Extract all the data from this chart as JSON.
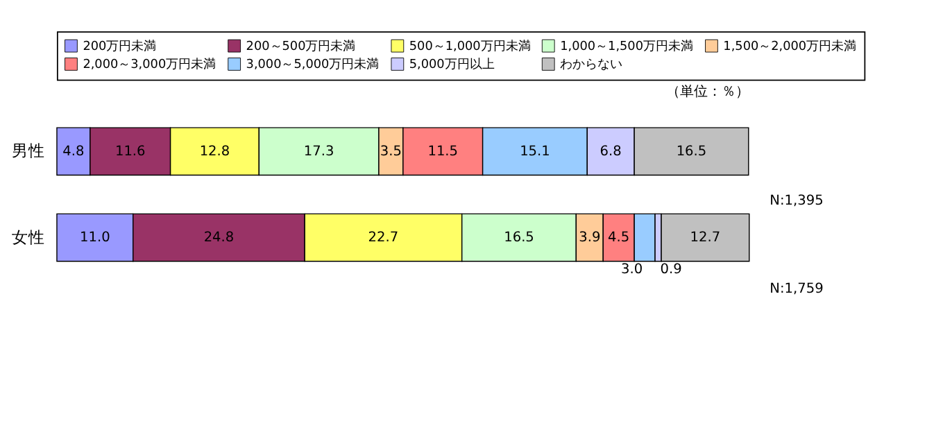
{
  "chart_data": {
    "type": "bar",
    "orientation": "horizontal",
    "stacked": true,
    "categories": [
      "男性",
      "女性"
    ],
    "series": [
      {
        "name": "200万円未満",
        "color": "#9999ff",
        "values": [
          4.8,
          11.0
        ],
        "value_labels": [
          "4.8",
          "11.0"
        ]
      },
      {
        "name": "200～500万円未満",
        "color": "#993366",
        "values": [
          11.6,
          24.8
        ],
        "value_labels": [
          "11.6",
          "24.8"
        ]
      },
      {
        "name": "500～1,000万円未満",
        "color": "#ffff66",
        "values": [
          12.8,
          22.7
        ],
        "value_labels": [
          "12.8",
          "22.7"
        ]
      },
      {
        "name": "1,000～1,500万円未満",
        "color": "#ccffcc",
        "values": [
          17.3,
          16.5
        ],
        "value_labels": [
          "17.3",
          "16.5"
        ]
      },
      {
        "name": "1,500～2,000万円未満",
        "color": "#ffcc99",
        "values": [
          3.5,
          3.9
        ],
        "value_labels": [
          "3.5",
          "3.9"
        ]
      },
      {
        "name": "2,000～3,000万円未満",
        "color": "#ff8080",
        "values": [
          11.5,
          4.5
        ],
        "value_labels": [
          "11.5",
          "4.5"
        ]
      },
      {
        "name": "3,000～5,000万円未満",
        "color": "#99ccff",
        "values": [
          15.1,
          3.0
        ],
        "value_labels": [
          "15.1",
          "3.0"
        ]
      },
      {
        "name": "5,000万円以上",
        "color": "#ccccff",
        "values": [
          6.8,
          0.9
        ],
        "value_labels": [
          "6.8",
          "0.9"
        ]
      },
      {
        "name": "わからない",
        "color": "#c0c0c0",
        "values": [
          16.5,
          12.7
        ],
        "value_labels": [
          "16.5",
          "12.7"
        ]
      }
    ],
    "xlim": [
      0,
      100
    ],
    "tick_labels": "y",
    "legend": "top",
    "grid": false,
    "annotations": [
      "（単位：％）",
      "N:1,395",
      "N:1,759"
    ]
  }
}
